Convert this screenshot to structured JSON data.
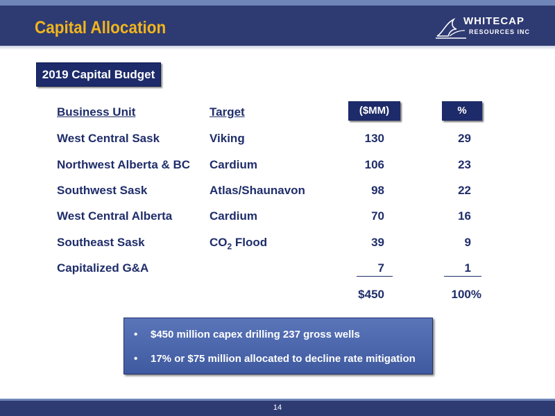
{
  "header": {
    "title": "Capital Allocation",
    "logo_line1": "WHITECAP",
    "logo_line2": "RESOURCES INC"
  },
  "budget_label": "2019 Capital Budget",
  "table": {
    "headers": [
      "Business Unit",
      "Target",
      "($MM)",
      "%"
    ],
    "rows": [
      {
        "unit": "West Central Sask",
        "target": "Viking",
        "mm": "130",
        "pct": "29"
      },
      {
        "unit": "Northwest Alberta & BC",
        "target": "Cardium",
        "mm": "106",
        "pct": "23"
      },
      {
        "unit": "Southwest Sask",
        "target": "Atlas/Shaunavon",
        "mm": "98",
        "pct": "22"
      },
      {
        "unit": "West Central Alberta",
        "target": "Cardium",
        "mm": "70",
        "pct": "16"
      },
      {
        "unit": "Southeast Sask",
        "target_prefix": "CO",
        "target_sub": "2",
        "target_suffix": " Flood",
        "mm": "39",
        "pct": "9"
      },
      {
        "unit": "Capitalized G&A",
        "target": "",
        "mm": "7",
        "pct": "1"
      }
    ],
    "total_mm": "$450",
    "total_pct": "100%"
  },
  "callout": {
    "bullet_symbol": "•",
    "bullets": [
      "$450 million capex drilling 237 gross wells",
      "17% or $75 million allocated to decline rate mitigation"
    ]
  },
  "footer": {
    "page_number": "14"
  },
  "colors": {
    "header_bg": "#2e3a72",
    "title": "#f2b51c",
    "text": "#1f2d6a",
    "box": "#1d2b6a"
  }
}
